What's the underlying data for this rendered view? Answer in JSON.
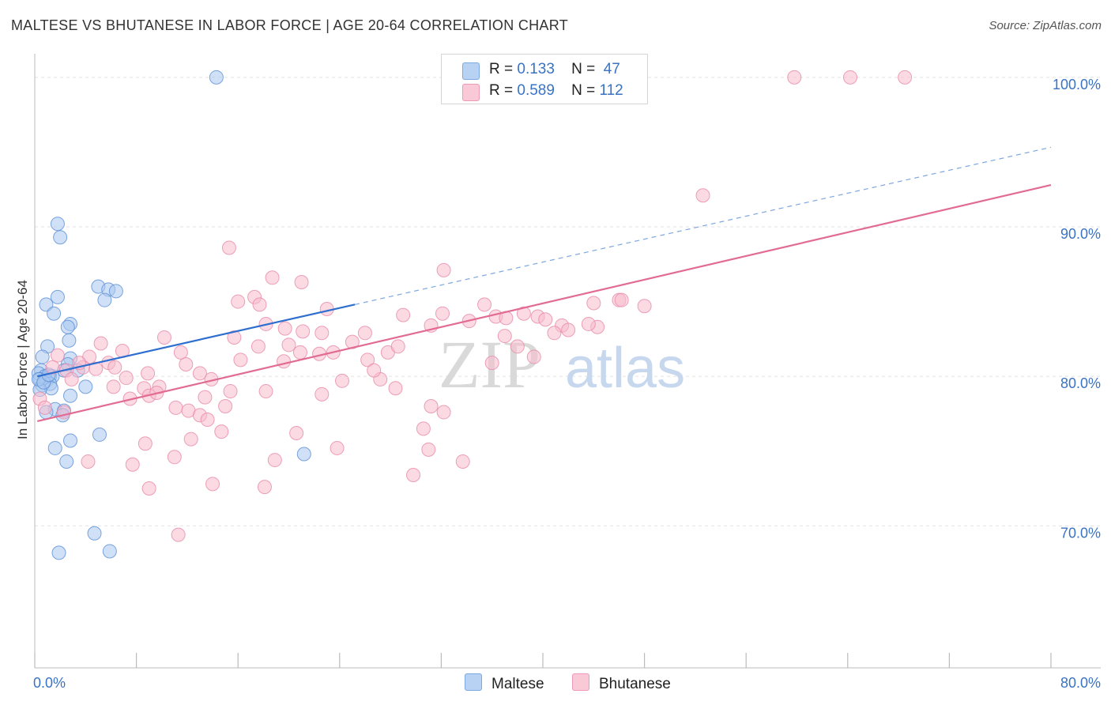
{
  "title": "MALTESE VS BHUTANESE IN LABOR FORCE | AGE 20-64 CORRELATION CHART",
  "source": "Source: ZipAtlas.com",
  "legend": {
    "rows": [
      {
        "r_label": "R =",
        "r_value": "0.133",
        "n_label": "N =",
        "n_value": "47",
        "color": "#a9c8f0"
      },
      {
        "r_label": "R =",
        "r_value": "0.589",
        "n_label": "N =",
        "n_value": "112",
        "color": "#f7bccd"
      }
    ]
  },
  "bottom_legend": [
    {
      "label": "Maltese",
      "color": "#a9c8f0"
    },
    {
      "label": "Bhutanese",
      "color": "#f7bccd"
    }
  ],
  "watermark": {
    "zip": "ZIP",
    "atlas": "atlas"
  },
  "chart_data": {
    "type": "scatter",
    "title": "MALTESE VS BHUTANESE IN LABOR FORCE | AGE 20-64 CORRELATION CHART",
    "xlabel": "",
    "ylabel": "In Labor Force | Age 20-64",
    "xlim": [
      0,
      80
    ],
    "ylim": [
      60.5,
      102
    ],
    "x_tick_labels": [
      "0.0%",
      "80.0%"
    ],
    "y_ticks": [
      70,
      80,
      90,
      100
    ],
    "y_tick_labels": [
      "70.0%",
      "80.0%",
      "90.0%",
      "100.0%"
    ],
    "grid": true,
    "legend_position": "top-center",
    "series": [
      {
        "name": "Maltese",
        "color": "#5b8fd6",
        "fill": "#a9c8f0",
        "trend": {
          "x": [
            0.2,
            25.2
          ],
          "y": [
            80.0,
            84.8
          ],
          "color": "#2e6ecf",
          "dashed_extension_to_x": 80
        },
        "points": [
          [
            14.3,
            100.0
          ],
          [
            1.8,
            90.2
          ],
          [
            2.0,
            89.3
          ],
          [
            5.0,
            86.0
          ],
          [
            5.8,
            85.8
          ],
          [
            6.4,
            85.7
          ],
          [
            1.8,
            85.3
          ],
          [
            5.5,
            85.1
          ],
          [
            0.9,
            84.8
          ],
          [
            1.5,
            84.2
          ],
          [
            2.8,
            83.5
          ],
          [
            2.6,
            83.3
          ],
          [
            2.7,
            82.4
          ],
          [
            1.0,
            82.0
          ],
          [
            0.6,
            81.3
          ],
          [
            2.8,
            81.2
          ],
          [
            2.6,
            80.8
          ],
          [
            3.4,
            80.4
          ],
          [
            0.5,
            80.4
          ],
          [
            2.3,
            80.4
          ],
          [
            0.3,
            80.2
          ],
          [
            0.8,
            80.0
          ],
          [
            1.2,
            80.0
          ],
          [
            1.4,
            80.0
          ],
          [
            0.4,
            79.8
          ],
          [
            0.9,
            79.7
          ],
          [
            1.2,
            79.5
          ],
          [
            0.6,
            79.4
          ],
          [
            1.3,
            79.2
          ],
          [
            4.0,
            79.3
          ],
          [
            0.4,
            79.1
          ],
          [
            2.8,
            78.7
          ],
          [
            1.6,
            77.8
          ],
          [
            2.3,
            77.7
          ],
          [
            0.9,
            77.6
          ],
          [
            2.2,
            77.4
          ],
          [
            5.1,
            76.1
          ],
          [
            2.8,
            75.7
          ],
          [
            1.6,
            75.2
          ],
          [
            2.5,
            74.3
          ],
          [
            21.2,
            74.8
          ],
          [
            4.7,
            69.5
          ],
          [
            1.9,
            68.2
          ],
          [
            5.9,
            68.3
          ],
          [
            0.3,
            79.8
          ],
          [
            0.7,
            79.6
          ],
          [
            1.1,
            80.1
          ]
        ]
      },
      {
        "name": "Bhutanese",
        "color": "#e889a8",
        "fill": "#f7bccd",
        "trend": {
          "x": [
            0.2,
            80
          ],
          "y": [
            77.0,
            92.8
          ],
          "color": "#e26b94"
        },
        "points": [
          [
            59.8,
            100.0
          ],
          [
            64.2,
            100.0
          ],
          [
            68.5,
            100.0
          ],
          [
            52.6,
            92.1
          ],
          [
            15.3,
            88.6
          ],
          [
            32.2,
            87.1
          ],
          [
            18.7,
            86.6
          ],
          [
            21.0,
            86.3
          ],
          [
            17.3,
            85.3
          ],
          [
            16.0,
            85.0
          ],
          [
            17.7,
            84.8
          ],
          [
            46.0,
            85.1
          ],
          [
            44.0,
            84.9
          ],
          [
            35.4,
            84.8
          ],
          [
            23.0,
            84.5
          ],
          [
            32.1,
            84.2
          ],
          [
            29.0,
            84.1
          ],
          [
            36.3,
            84.0
          ],
          [
            37.1,
            83.9
          ],
          [
            39.6,
            84.0
          ],
          [
            38.5,
            84.2
          ],
          [
            40.2,
            83.8
          ],
          [
            41.5,
            83.4
          ],
          [
            18.2,
            83.5
          ],
          [
            19.7,
            83.2
          ],
          [
            21.1,
            83.0
          ],
          [
            31.2,
            83.4
          ],
          [
            22.6,
            82.9
          ],
          [
            26.0,
            82.9
          ],
          [
            10.2,
            82.6
          ],
          [
            15.7,
            82.6
          ],
          [
            37.0,
            82.7
          ],
          [
            40.9,
            82.9
          ],
          [
            44.3,
            83.3
          ],
          [
            5.2,
            82.2
          ],
          [
            17.6,
            82.0
          ],
          [
            20.0,
            82.1
          ],
          [
            23.5,
            81.6
          ],
          [
            27.8,
            81.6
          ],
          [
            28.6,
            82.0
          ],
          [
            6.9,
            81.7
          ],
          [
            11.5,
            81.6
          ],
          [
            38.0,
            82.0
          ],
          [
            20.9,
            81.6
          ],
          [
            22.4,
            81.5
          ],
          [
            1.8,
            81.4
          ],
          [
            4.3,
            81.3
          ],
          [
            16.2,
            81.1
          ],
          [
            19.6,
            81.0
          ],
          [
            26.2,
            81.1
          ],
          [
            36.0,
            80.9
          ],
          [
            39.3,
            81.3
          ],
          [
            3.8,
            80.6
          ],
          [
            5.8,
            80.9
          ],
          [
            11.9,
            80.8
          ],
          [
            2.5,
            80.4
          ],
          [
            4.8,
            80.5
          ],
          [
            13.0,
            80.2
          ],
          [
            13.9,
            79.8
          ],
          [
            24.2,
            79.7
          ],
          [
            27.2,
            79.8
          ],
          [
            6.2,
            79.3
          ],
          [
            7.2,
            79.9
          ],
          [
            8.6,
            79.2
          ],
          [
            9.8,
            79.3
          ],
          [
            15.4,
            79.0
          ],
          [
            18.2,
            79.0
          ],
          [
            28.4,
            79.2
          ],
          [
            9.0,
            78.7
          ],
          [
            9.6,
            78.9
          ],
          [
            13.4,
            78.6
          ],
          [
            22.6,
            78.8
          ],
          [
            7.5,
            78.5
          ],
          [
            15.0,
            78.0
          ],
          [
            11.1,
            77.9
          ],
          [
            12.1,
            77.7
          ],
          [
            31.2,
            78.0
          ],
          [
            2.3,
            77.6
          ],
          [
            13.0,
            77.4
          ],
          [
            13.6,
            77.1
          ],
          [
            32.2,
            77.6
          ],
          [
            12.3,
            75.8
          ],
          [
            14.7,
            76.3
          ],
          [
            20.6,
            76.2
          ],
          [
            23.8,
            75.2
          ],
          [
            8.7,
            75.5
          ],
          [
            30.6,
            76.5
          ],
          [
            31.0,
            75.1
          ],
          [
            4.2,
            74.3
          ],
          [
            7.7,
            74.1
          ],
          [
            11.0,
            74.6
          ],
          [
            18.9,
            74.4
          ],
          [
            29.8,
            73.4
          ],
          [
            33.7,
            74.3
          ],
          [
            9.0,
            72.5
          ],
          [
            14.0,
            72.8
          ],
          [
            18.1,
            72.6
          ],
          [
            11.3,
            69.4
          ],
          [
            0.4,
            78.5
          ],
          [
            0.8,
            77.9
          ],
          [
            1.4,
            80.6
          ],
          [
            2.9,
            79.8
          ],
          [
            34.2,
            83.7
          ],
          [
            46.2,
            85.1
          ],
          [
            26.7,
            80.4
          ],
          [
            8.9,
            80.2
          ],
          [
            3.5,
            80.9
          ],
          [
            42.0,
            83.1
          ],
          [
            25.0,
            82.3
          ],
          [
            6.3,
            80.6
          ],
          [
            43.6,
            83.5
          ],
          [
            48.0,
            84.7
          ]
        ]
      }
    ]
  }
}
